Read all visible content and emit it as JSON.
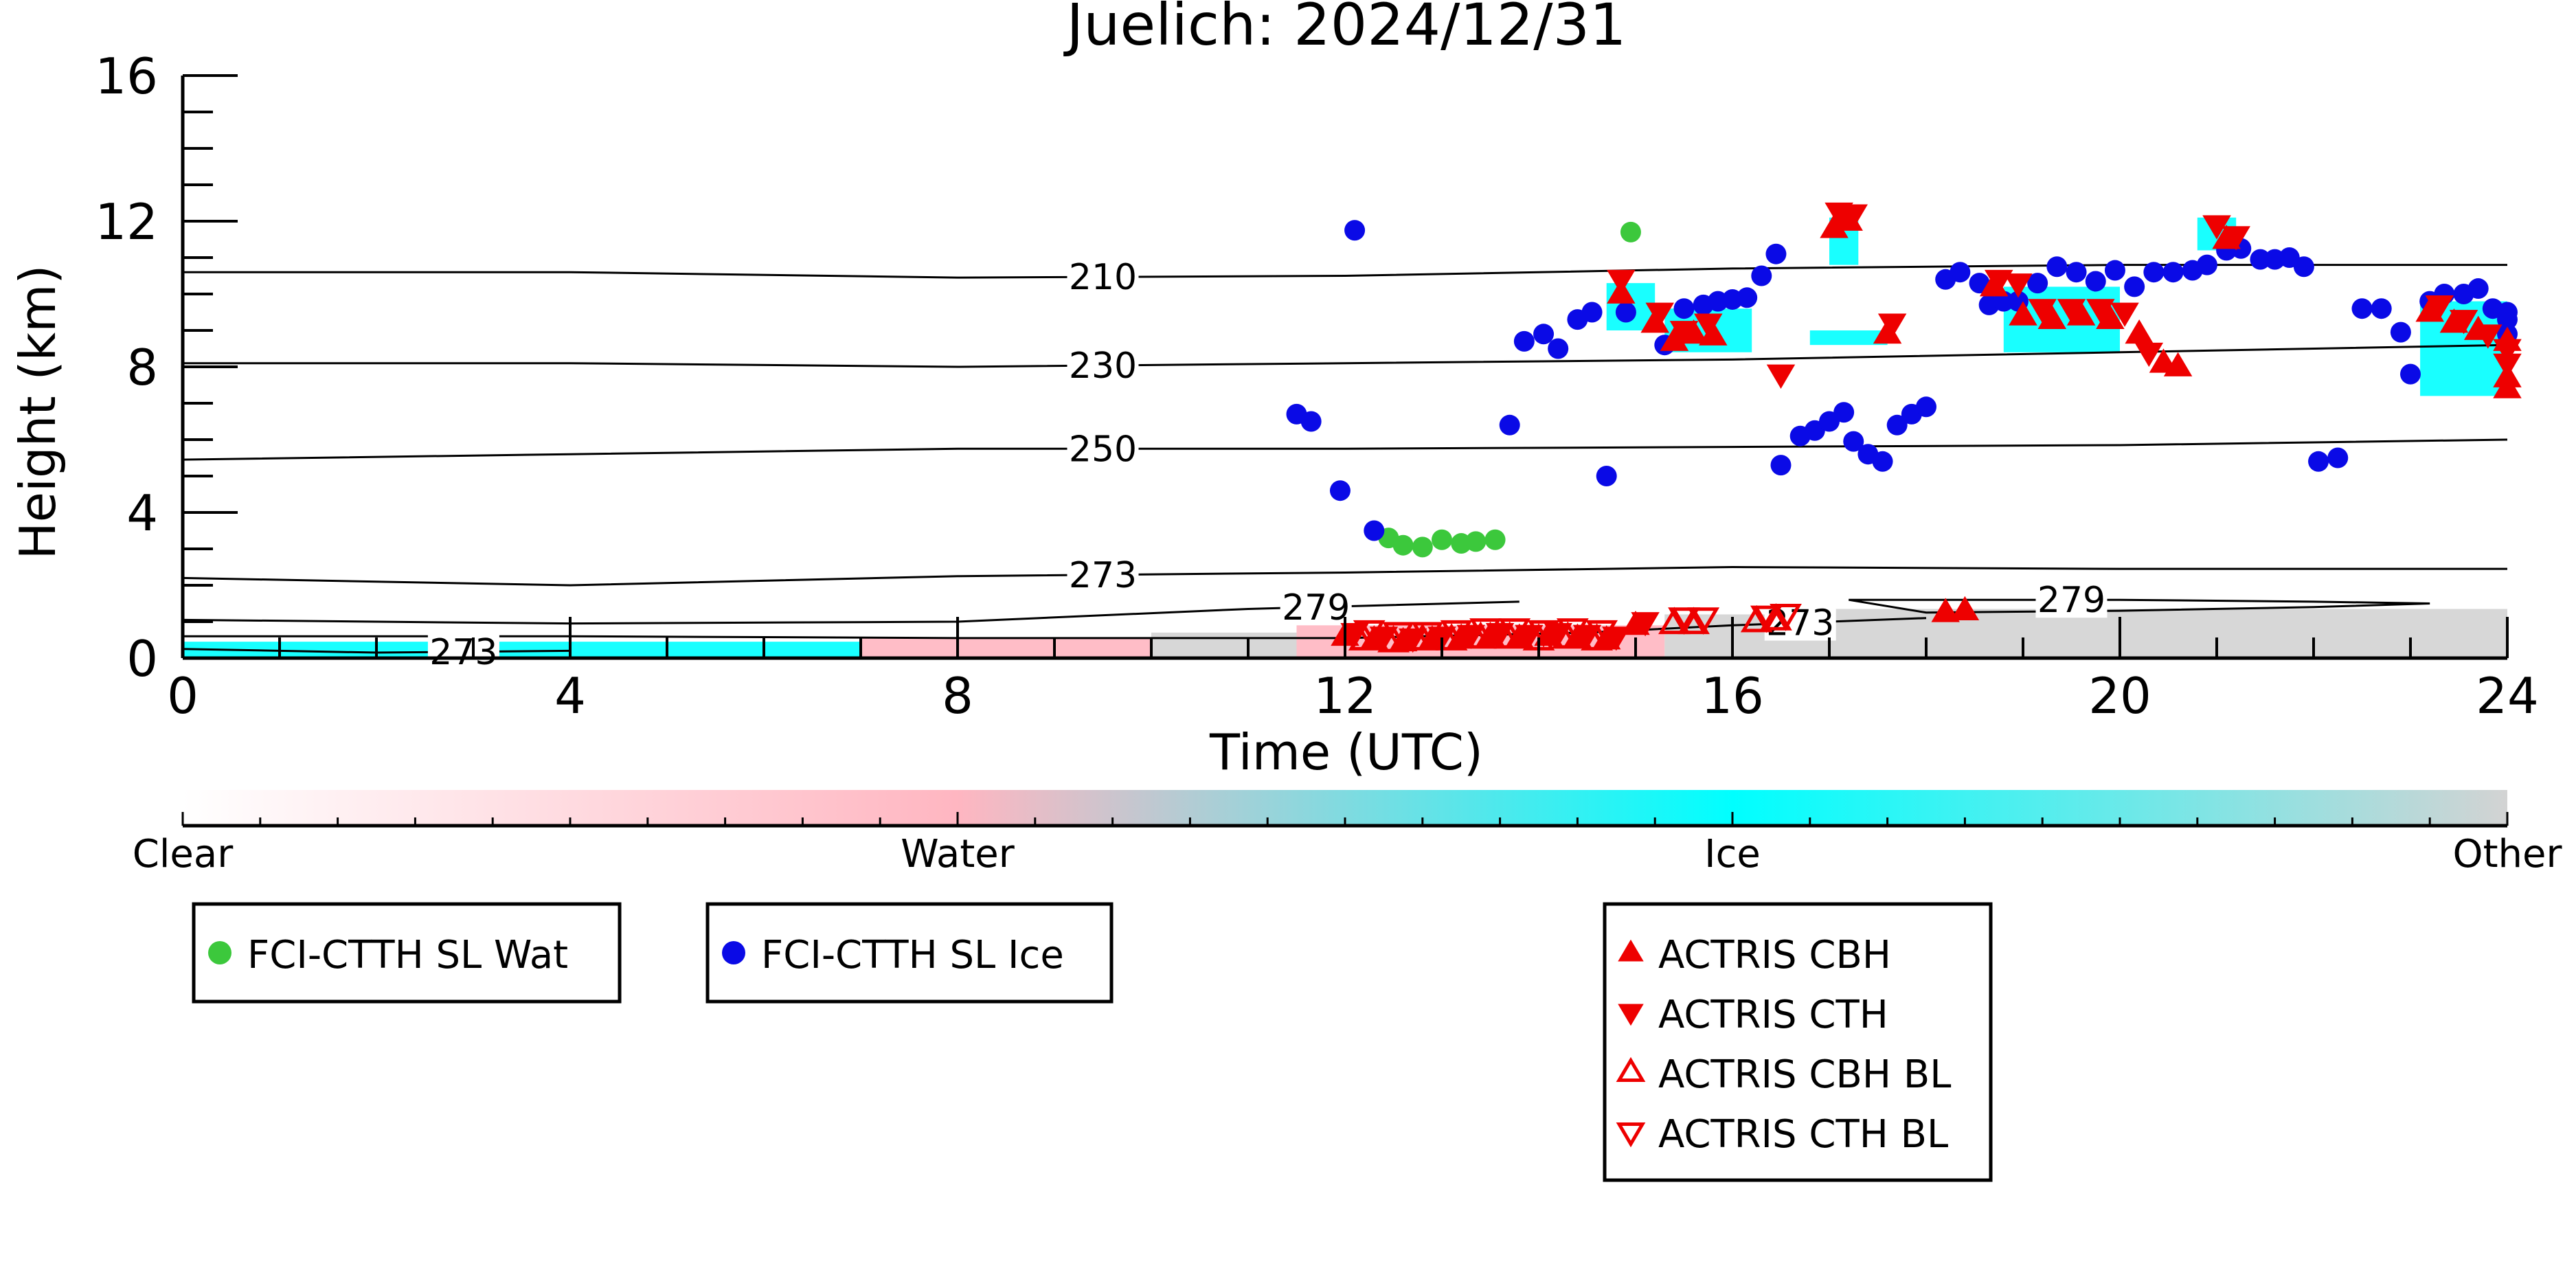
{
  "chart_data": {
    "type": "scatter",
    "title": "Juelich: 2024/12/31",
    "xlabel": "Time (UTC)",
    "ylabel": "Height (km)",
    "xlim": [
      0,
      24
    ],
    "ylim": [
      0,
      16
    ],
    "x_ticks": [
      "0",
      "4",
      "8",
      "12",
      "16",
      "20",
      "24"
    ],
    "y_ticks": [
      "0",
      "4",
      "8",
      "12",
      "16"
    ],
    "grid": false,
    "contours": [
      {
        "label": "210",
        "label_x": 9.5,
        "points": [
          [
            0,
            10.6
          ],
          [
            4,
            10.6
          ],
          [
            8,
            10.45
          ],
          [
            12,
            10.5
          ],
          [
            16,
            10.7
          ],
          [
            20,
            10.8
          ],
          [
            24,
            10.8
          ]
        ]
      },
      {
        "label": "230",
        "label_x": 9.5,
        "points": [
          [
            0,
            8.1
          ],
          [
            4,
            8.1
          ],
          [
            8,
            8.0
          ],
          [
            12,
            8.1
          ],
          [
            16,
            8.2
          ],
          [
            20,
            8.4
          ],
          [
            24,
            8.6
          ]
        ]
      },
      {
        "label": "250",
        "label_x": 9.5,
        "points": [
          [
            0,
            5.45
          ],
          [
            4,
            5.6
          ],
          [
            8,
            5.75
          ],
          [
            12,
            5.75
          ],
          [
            16,
            5.8
          ],
          [
            20,
            5.85
          ],
          [
            24,
            6.0
          ]
        ]
      },
      {
        "label": "273",
        "label_x": 9.5,
        "points": [
          [
            0,
            2.2
          ],
          [
            2,
            2.1
          ],
          [
            4,
            2.0
          ],
          [
            8,
            2.25
          ],
          [
            12,
            2.35
          ],
          [
            16,
            2.5
          ],
          [
            20,
            2.45
          ],
          [
            24,
            2.45
          ]
        ]
      },
      {
        "label": "279",
        "label_x": 11.7,
        "points": [
          [
            0,
            1.05
          ],
          [
            4,
            0.95
          ],
          [
            8,
            1.0
          ],
          [
            11,
            1.35
          ],
          [
            13.8,
            1.55
          ]
        ]
      },
      {
        "label": "279",
        "label_x": 19.5,
        "points": [
          [
            17.2,
            1.6
          ],
          [
            18,
            1.6
          ],
          [
            20,
            1.6
          ],
          [
            22,
            1.55
          ],
          [
            23.2,
            1.5
          ],
          [
            22,
            1.4
          ],
          [
            20,
            1.3
          ],
          [
            18,
            1.25
          ],
          [
            17.2,
            1.6
          ]
        ]
      },
      {
        "label": "273",
        "label_x": 16.7,
        "points": [
          [
            0,
            0.6
          ],
          [
            4,
            0.6
          ],
          [
            8,
            0.55
          ],
          [
            12,
            0.55
          ],
          [
            14.5,
            0.7
          ],
          [
            16,
            0.9
          ],
          [
            18,
            1.1
          ]
        ]
      },
      {
        "label": "273",
        "label_x": 2.9,
        "points": [
          [
            0,
            0.25
          ],
          [
            2,
            0.15
          ],
          [
            4,
            0.2
          ]
        ]
      }
    ],
    "legend": [
      {
        "label": "FCI-CTTH SL Wat",
        "marker": "circle",
        "color": "#3cc83c"
      },
      {
        "label": "FCI-CTTH SL Ice",
        "marker": "circle",
        "color": "#0a0ae6"
      },
      {
        "label": "ACTRIS CBH",
        "marker": "triangle-up",
        "color": "#ee0000"
      },
      {
        "label": "ACTRIS CTH",
        "marker": "triangle-down",
        "color": "#ee0000"
      },
      {
        "label": "ACTRIS CBH BL",
        "marker": "triangle-up-open",
        "color": "#ee0000"
      },
      {
        "label": "ACTRIS CTH BL",
        "marker": "triangle-down-open",
        "color": "#ee0000"
      }
    ],
    "colorbar": {
      "labels": [
        "Clear",
        "Water",
        "Ice",
        "Other"
      ],
      "colors": [
        "#ffffff",
        "#ffb6c1",
        "#00ffff",
        "#d3d3d3"
      ]
    },
    "series": [
      {
        "name": "FCI-CTTH SL Wat",
        "marker": "circle",
        "color": "#3cc83c",
        "points": [
          [
            12.45,
            3.3
          ],
          [
            12.6,
            3.1
          ],
          [
            12.8,
            3.05
          ],
          [
            13.0,
            3.25
          ],
          [
            13.2,
            3.15
          ],
          [
            13.35,
            3.2
          ],
          [
            13.55,
            3.25
          ],
          [
            14.95,
            11.7
          ]
        ]
      },
      {
        "name": "FCI-CTTH SL Ice",
        "marker": "circle",
        "color": "#0a0ae6",
        "points": [
          [
            11.5,
            6.7
          ],
          [
            11.65,
            6.5
          ],
          [
            11.95,
            4.6
          ],
          [
            12.1,
            11.75
          ],
          [
            12.3,
            3.5
          ],
          [
            13.7,
            6.4
          ],
          [
            13.85,
            8.7
          ],
          [
            14.05,
            8.9
          ],
          [
            14.2,
            8.5
          ],
          [
            14.4,
            9.3
          ],
          [
            14.55,
            9.5
          ],
          [
            14.7,
            5.0
          ],
          [
            14.9,
            9.5
          ],
          [
            15.3,
            8.6
          ],
          [
            15.5,
            9.6
          ],
          [
            15.7,
            9.7
          ],
          [
            15.85,
            9.8
          ],
          [
            16.0,
            9.85
          ],
          [
            16.15,
            9.9
          ],
          [
            16.3,
            10.5
          ],
          [
            16.45,
            11.1
          ],
          [
            16.5,
            5.3
          ],
          [
            16.7,
            6.1
          ],
          [
            16.85,
            6.25
          ],
          [
            17.0,
            6.5
          ],
          [
            17.15,
            6.75
          ],
          [
            17.25,
            5.95
          ],
          [
            17.4,
            5.6
          ],
          [
            17.55,
            5.4
          ],
          [
            17.7,
            6.4
          ],
          [
            17.85,
            6.7
          ],
          [
            18.0,
            6.9
          ],
          [
            18.2,
            10.4
          ],
          [
            18.35,
            10.6
          ],
          [
            18.55,
            10.3
          ],
          [
            18.65,
            9.7
          ],
          [
            18.8,
            9.8
          ],
          [
            18.95,
            9.8
          ],
          [
            19.15,
            10.3
          ],
          [
            19.35,
            10.75
          ],
          [
            19.55,
            10.6
          ],
          [
            19.75,
            10.35
          ],
          [
            19.95,
            10.65
          ],
          [
            20.15,
            10.2
          ],
          [
            20.35,
            10.6
          ],
          [
            20.55,
            10.6
          ],
          [
            20.75,
            10.65
          ],
          [
            20.9,
            10.8
          ],
          [
            21.1,
            11.2
          ],
          [
            21.25,
            11.25
          ],
          [
            21.45,
            10.95
          ],
          [
            21.6,
            10.95
          ],
          [
            21.75,
            11.0
          ],
          [
            21.9,
            10.75
          ],
          [
            22.05,
            5.4
          ],
          [
            22.25,
            5.5
          ],
          [
            22.5,
            9.6
          ],
          [
            22.7,
            9.6
          ],
          [
            22.9,
            8.95
          ],
          [
            23.0,
            7.8
          ],
          [
            23.2,
            9.8
          ],
          [
            23.35,
            10.0
          ],
          [
            23.55,
            10.0
          ],
          [
            23.7,
            10.15
          ],
          [
            23.85,
            9.6
          ],
          [
            24.0,
            9.3
          ],
          [
            24.2,
            8.9
          ],
          [
            24.35,
            9.5
          ]
        ]
      },
      {
        "name": "ACTRIS CBH",
        "marker": "triangle-up",
        "color": "#ee0000",
        "points": [
          [
            12.0,
            0.6
          ],
          [
            12.3,
            0.5
          ],
          [
            12.6,
            0.45
          ],
          [
            12.9,
            0.5
          ],
          [
            13.2,
            0.55
          ],
          [
            13.5,
            0.6
          ],
          [
            13.8,
            0.55
          ],
          [
            14.1,
            0.6
          ],
          [
            14.4,
            0.55
          ],
          [
            14.7,
            0.5
          ],
          [
            15.0,
            0.9
          ],
          [
            14.85,
            10.0
          ],
          [
            15.2,
            9.2
          ],
          [
            15.4,
            8.7
          ],
          [
            15.6,
            8.9
          ],
          [
            15.8,
            8.85
          ],
          [
            17.05,
            11.8
          ],
          [
            17.2,
            12.0
          ],
          [
            17.6,
            8.9
          ],
          [
            18.2,
            1.25
          ],
          [
            18.4,
            1.3
          ],
          [
            18.7,
            10.2
          ],
          [
            19.0,
            9.4
          ],
          [
            19.3,
            9.3
          ],
          [
            19.6,
            9.4
          ],
          [
            19.9,
            9.3
          ],
          [
            20.2,
            8.9
          ],
          [
            20.45,
            8.1
          ],
          [
            20.6,
            8.0
          ],
          [
            21.1,
            11.5
          ],
          [
            23.2,
            9.5
          ],
          [
            23.45,
            9.2
          ],
          [
            23.7,
            9.0
          ],
          [
            24.0,
            8.7
          ],
          [
            24.3,
            7.7
          ],
          [
            24.45,
            7.4
          ]
        ]
      },
      {
        "name": "ACTRIS CTH",
        "marker": "triangle-down",
        "color": "#ee0000",
        "points": [
          [
            12.1,
            0.7
          ],
          [
            12.4,
            0.6
          ],
          [
            12.7,
            0.55
          ],
          [
            13.0,
            0.6
          ],
          [
            13.3,
            0.65
          ],
          [
            13.6,
            0.7
          ],
          [
            13.9,
            0.65
          ],
          [
            14.2,
            0.7
          ],
          [
            14.5,
            0.65
          ],
          [
            14.8,
            0.6
          ],
          [
            15.1,
            1.0
          ],
          [
            14.85,
            10.4
          ],
          [
            15.25,
            9.5
          ],
          [
            15.5,
            9.0
          ],
          [
            15.75,
            9.2
          ],
          [
            16.5,
            7.8
          ],
          [
            17.1,
            12.25
          ],
          [
            17.25,
            12.2
          ],
          [
            17.65,
            9.2
          ],
          [
            18.75,
            10.4
          ],
          [
            18.95,
            10.3
          ],
          [
            19.2,
            9.6
          ],
          [
            19.5,
            9.6
          ],
          [
            19.8,
            9.6
          ],
          [
            20.05,
            9.5
          ],
          [
            20.3,
            8.4
          ],
          [
            21.0,
            11.9
          ],
          [
            21.2,
            11.6
          ],
          [
            23.3,
            9.7
          ],
          [
            23.55,
            9.3
          ],
          [
            23.8,
            8.9
          ],
          [
            24.1,
            8.5
          ],
          [
            24.35,
            8.1
          ]
        ]
      },
      {
        "name": "ACTRIS CBH BL",
        "marker": "triangle-up-open",
        "color": "#ee0000",
        "points": [
          [
            12.2,
            0.5
          ],
          [
            12.5,
            0.45
          ],
          [
            12.8,
            0.5
          ],
          [
            13.1,
            0.5
          ],
          [
            13.4,
            0.55
          ],
          [
            13.7,
            0.55
          ],
          [
            14.0,
            0.5
          ],
          [
            14.3,
            0.55
          ],
          [
            14.6,
            0.5
          ],
          [
            15.4,
            0.95
          ],
          [
            15.6,
            0.95
          ],
          [
            16.25,
            1.0
          ],
          [
            16.45,
            1.05
          ]
        ]
      },
      {
        "name": "ACTRIS CTH BL",
        "marker": "triangle-down-open",
        "color": "#ee0000",
        "points": [
          [
            12.25,
            0.75
          ],
          [
            12.55,
            0.7
          ],
          [
            12.85,
            0.7
          ],
          [
            13.15,
            0.75
          ],
          [
            13.45,
            0.8
          ],
          [
            13.75,
            0.8
          ],
          [
            14.05,
            0.75
          ],
          [
            14.35,
            0.8
          ],
          [
            14.65,
            0.75
          ],
          [
            15.5,
            1.1
          ],
          [
            15.7,
            1.1
          ],
          [
            16.35,
            1.15
          ],
          [
            16.55,
            1.2
          ]
        ]
      }
    ],
    "background_classes": [
      {
        "class": "Ice",
        "x": [
          0.0,
          7.0
        ],
        "y": [
          0.0,
          0.45
        ]
      },
      {
        "class": "Water",
        "x": [
          7.0,
          10.0
        ],
        "y": [
          0.0,
          0.55
        ]
      },
      {
        "class": "Other",
        "x": [
          10.0,
          11.5
        ],
        "y": [
          0.0,
          0.7
        ]
      },
      {
        "class": "Water",
        "x": [
          11.5,
          15.3
        ],
        "y": [
          0.0,
          0.9
        ]
      },
      {
        "class": "Other",
        "x": [
          15.3,
          17.0
        ],
        "y": [
          0.0,
          1.2
        ]
      },
      {
        "class": "Other",
        "x": [
          17.0,
          24.0
        ],
        "y": [
          0.0,
          1.35
        ]
      },
      {
        "class": "Ice",
        "x": [
          14.7,
          15.2
        ],
        "y": [
          9.0,
          10.3
        ]
      },
      {
        "class": "Ice",
        "x": [
          15.3,
          16.2
        ],
        "y": [
          8.4,
          9.6
        ]
      },
      {
        "class": "Ice",
        "x": [
          17.0,
          17.3
        ],
        "y": [
          10.8,
          12.1
        ]
      },
      {
        "class": "Ice",
        "x": [
          18.8,
          20.0
        ],
        "y": [
          8.4,
          10.2
        ]
      },
      {
        "class": "Ice",
        "x": [
          20.8,
          21.2
        ],
        "y": [
          11.2,
          12.1
        ]
      },
      {
        "class": "Ice",
        "x": [
          23.1,
          24.4
        ],
        "y": [
          7.2,
          9.8
        ]
      },
      {
        "class": "Ice",
        "x": [
          16.8,
          17.6
        ],
        "y": [
          8.6,
          9.0
        ]
      }
    ]
  }
}
